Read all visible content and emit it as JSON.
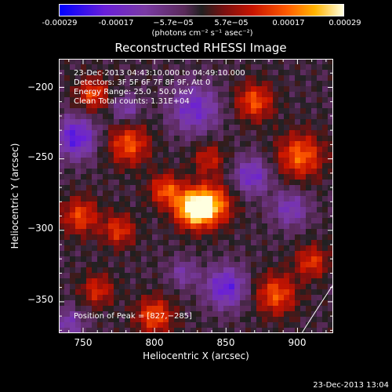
{
  "colorbar": {
    "ticks": [
      "-0.00029",
      "-0.00017",
      "−5.7e−05",
      "5.7e−05",
      "0.00017",
      "0.00029"
    ],
    "unit_label": "(photons cm⁻² s⁻¹ asec⁻²)"
  },
  "chart_data": {
    "type": "heatmap",
    "title": "Reconstructed RHESSI Image",
    "xlabel": "Heliocentric X (arcsec)",
    "ylabel": "Heliocentric Y (arcsec)",
    "xlim": [
      733,
      925
    ],
    "ylim": [
      -372,
      -180
    ],
    "x_ticks": [
      "750",
      "800",
      "850",
      "900"
    ],
    "y_ticks": [
      "−200",
      "−250",
      "−300",
      "−350"
    ],
    "colorbar_range": [
      -0.00029,
      0.00029
    ],
    "peak": [
      827,
      -285
    ],
    "annotations": [
      "23-Dec-2013 04:43:10.000 to 04:49:10.000",
      "Detectors: 3F 5F 6F 7F 8F 9F, Att 0",
      "Energy Range: 25.0 - 50.0 keV",
      "Clean     Total counts: 1.31E+04"
    ],
    "peak_text": "Position of Peak = [827,−285]",
    "limb_line": [
      [
        903,
        -372
      ],
      [
        925,
        -338
      ]
    ]
  },
  "timestamp": "23-Dec-2013 13:04"
}
